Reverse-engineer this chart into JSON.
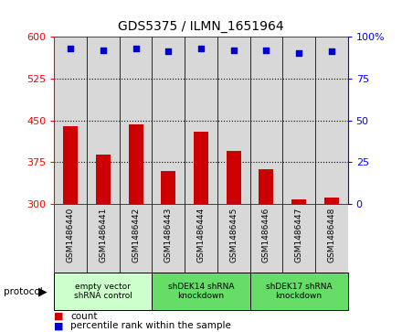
{
  "title": "GDS5375 / ILMN_1651964",
  "samples": [
    "GSM1486440",
    "GSM1486441",
    "GSM1486442",
    "GSM1486443",
    "GSM1486444",
    "GSM1486445",
    "GSM1486446",
    "GSM1486447",
    "GSM1486448"
  ],
  "counts": [
    440,
    388,
    443,
    360,
    430,
    395,
    362,
    308,
    312
  ],
  "percentiles": [
    93,
    92,
    93,
    91,
    93,
    92,
    92,
    90,
    91
  ],
  "ylim_left": [
    300,
    600
  ],
  "yticks_left": [
    300,
    375,
    450,
    525,
    600
  ],
  "ylim_right": [
    0,
    100
  ],
  "yticks_right": [
    0,
    25,
    50,
    75,
    100
  ],
  "bar_color": "#cc0000",
  "dot_color": "#0000cc",
  "grid_lines": [
    375,
    450,
    525
  ],
  "groups": [
    {
      "label": "empty vector\nshRNA control",
      "start": 0,
      "end": 3
    },
    {
      "label": "shDEK14 shRNA\nknockdown",
      "start": 3,
      "end": 6
    },
    {
      "label": "shDEK17 shRNA\nknockdown",
      "start": 6,
      "end": 9
    }
  ],
  "group_colors": [
    "#ccffcc",
    "#66dd66",
    "#66dd66"
  ],
  "legend_count_label": "count",
  "legend_percentile_label": "percentile rank within the sample",
  "protocol_label": "protocol",
  "background_color": "#ffffff",
  "plot_bg_color": "#d8d8d8",
  "tick_label_bg": "#d8d8d8"
}
